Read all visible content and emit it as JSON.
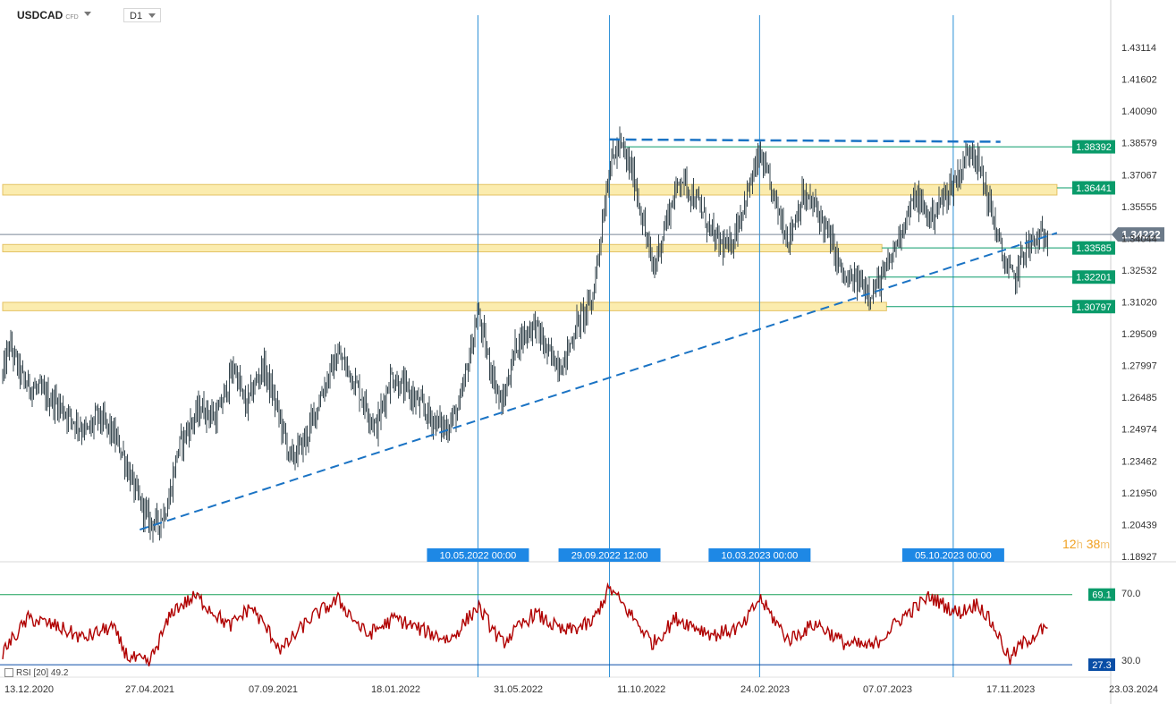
{
  "header": {
    "symbol": "USDCAD",
    "symbol_type": "CFD",
    "timeframe": "D1"
  },
  "timer": {
    "hours": "12",
    "h_unit": "h",
    "minutes": "38",
    "m_unit": "m"
  },
  "rsi_legend": {
    "label": "RSI",
    "period": "[20]",
    "value": "49.2"
  },
  "colors": {
    "candle": "#37474f",
    "trend": "#1a73c4",
    "zone": "#fbe9a0",
    "level_badge": "#0a9b6a",
    "price_badge": "#6c7a89",
    "rsi": "#b00000",
    "rsi_low": "#0a4ea6"
  },
  "chart_data": {
    "type": "candlestick",
    "instrument": "USDCAD",
    "timeframe": "D1",
    "y_axis_ticks": [
      "1.43114",
      "1.41602",
      "1.40090",
      "1.38579",
      "1.37067",
      "1.35555",
      "1.34044",
      "1.32532",
      "1.31020",
      "1.29509",
      "1.27997",
      "1.26485",
      "1.24974",
      "1.23462",
      "1.21950",
      "1.20439",
      "1.18927"
    ],
    "x_axis_ticks": [
      "13.12.2020",
      "27.04.2021",
      "07.09.2021",
      "18.01.2022",
      "31.05.2022",
      "11.10.2022",
      "24.02.2023",
      "07.07.2023",
      "17.11.2023",
      "23.03.2024"
    ],
    "current_price": "1.34222",
    "level_labels": [
      "1.38392",
      "1.36441",
      "1.33585",
      "1.32201",
      "1.30797"
    ],
    "price_path": [
      [
        "2020-12-13",
        1.275
      ],
      [
        "2020-12-20",
        1.29
      ],
      [
        "2021-01-05",
        1.272
      ],
      [
        "2021-01-20",
        1.268
      ],
      [
        "2021-02-10",
        1.262
      ],
      [
        "2021-02-25",
        1.255
      ],
      [
        "2021-03-15",
        1.248
      ],
      [
        "2021-03-25",
        1.256
      ],
      [
        "2021-04-10",
        1.248
      ],
      [
        "2021-04-20",
        1.24
      ],
      [
        "2021-05-05",
        1.22
      ],
      [
        "2021-05-20",
        1.206
      ],
      [
        "2021-05-30",
        1.205
      ],
      [
        "2021-06-10",
        1.215
      ],
      [
        "2021-06-20",
        1.24
      ],
      [
        "2021-07-01",
        1.25
      ],
      [
        "2021-07-15",
        1.26
      ],
      [
        "2021-08-01",
        1.255
      ],
      [
        "2021-08-20",
        1.28
      ],
      [
        "2021-09-01",
        1.26
      ],
      [
        "2021-09-20",
        1.28
      ],
      [
        "2021-10-05",
        1.26
      ],
      [
        "2021-10-20",
        1.235
      ],
      [
        "2021-11-05",
        1.245
      ],
      [
        "2021-11-25",
        1.27
      ],
      [
        "2021-12-10",
        1.285
      ],
      [
        "2021-12-25",
        1.275
      ],
      [
        "2022-01-10",
        1.26
      ],
      [
        "2022-01-20",
        1.25
      ],
      [
        "2022-02-05",
        1.275
      ],
      [
        "2022-03-01",
        1.265
      ],
      [
        "2022-03-20",
        1.255
      ],
      [
        "2022-04-05",
        1.25
      ],
      [
        "2022-04-20",
        1.26
      ],
      [
        "2022-05-10",
        1.305
      ],
      [
        "2022-05-20",
        1.285
      ],
      [
        "2022-06-05",
        1.26
      ],
      [
        "2022-06-20",
        1.29
      ],
      [
        "2022-07-10",
        1.3
      ],
      [
        "2022-07-25",
        1.285
      ],
      [
        "2022-08-10",
        1.28
      ],
      [
        "2022-08-25",
        1.3
      ],
      [
        "2022-09-10",
        1.31
      ],
      [
        "2022-09-29",
        1.375
      ],
      [
        "2022-10-10",
        1.385
      ],
      [
        "2022-10-25",
        1.37
      ],
      [
        "2022-11-15",
        1.325
      ],
      [
        "2022-11-30",
        1.35
      ],
      [
        "2022-12-15",
        1.37
      ],
      [
        "2023-01-05",
        1.355
      ],
      [
        "2023-01-20",
        1.34
      ],
      [
        "2023-02-05",
        1.335
      ],
      [
        "2023-02-20",
        1.355
      ],
      [
        "2023-03-10",
        1.38
      ],
      [
        "2023-03-25",
        1.36
      ],
      [
        "2023-04-10",
        1.34
      ],
      [
        "2023-04-25",
        1.36
      ],
      [
        "2023-05-10",
        1.355
      ],
      [
        "2023-05-25",
        1.34
      ],
      [
        "2023-06-10",
        1.32
      ],
      [
        "2023-06-25",
        1.32
      ],
      [
        "2023-07-10",
        1.315
      ],
      [
        "2023-07-25",
        1.325
      ],
      [
        "2023-08-10",
        1.345
      ],
      [
        "2023-08-25",
        1.36
      ],
      [
        "2023-09-10",
        1.35
      ],
      [
        "2023-09-25",
        1.36
      ],
      [
        "2023-10-10",
        1.37
      ],
      [
        "2023-10-25",
        1.385
      ],
      [
        "2023-11-05",
        1.37
      ],
      [
        "2023-11-17",
        1.35
      ],
      [
        "2023-11-28",
        1.33
      ],
      [
        "2023-12-10",
        1.32
      ],
      [
        "2023-12-20",
        1.335
      ],
      [
        "2024-01-05",
        1.34
      ],
      [
        "2024-01-15",
        1.342
      ]
    ],
    "zones": [
      {
        "label": "1.36441",
        "lower": 1.361,
        "upper": 1.366,
        "start": "2020-12-13",
        "end": "2024-01-25"
      },
      {
        "label": "1.33585",
        "lower": 1.334,
        "upper": 1.3375,
        "start": "2020-12-13",
        "end": "2023-07-20"
      },
      {
        "label": "1.30797",
        "lower": 1.306,
        "upper": 1.31,
        "start": "2020-12-13",
        "end": "2023-07-25"
      }
    ],
    "levels": [
      {
        "label": "1.38392",
        "value": 1.38392,
        "start": "2022-10-15"
      },
      {
        "label": "1.32201",
        "value": 1.32201,
        "start": "2023-07-05"
      }
    ],
    "trendlines": [
      {
        "style": "dashed",
        "from": [
          "2021-05-10",
          1.202
        ],
        "to": [
          "2024-01-25",
          1.343
        ]
      },
      {
        "style": "dashed",
        "from": [
          "2022-09-29",
          1.3874
        ],
        "to": [
          "2023-11-25",
          1.3863
        ]
      }
    ],
    "vertical_markers": [
      {
        "label": "10.05.2022 00:00",
        "date": "2022-05-10"
      },
      {
        "label": "29.09.2022 12:00",
        "date": "2022-09-29"
      },
      {
        "label": "10.03.2023 00:00",
        "date": "2023-03-10"
      },
      {
        "label": "05.10.2023 00:00",
        "date": "2023-10-05"
      }
    ],
    "rsi": {
      "period": 20,
      "value": 49.2,
      "levels": [
        {
          "label": "70.0",
          "value": 70.0
        },
        {
          "label": "30.0",
          "value": 30.0
        }
      ],
      "markers": [
        {
          "label": "69.1",
          "value": 69.1
        },
        {
          "label": "27.3",
          "value": 27.3
        }
      ],
      "path": [
        [
          "2020-12-13",
          35
        ],
        [
          "2021-01-10",
          55
        ],
        [
          "2021-02-10",
          50
        ],
        [
          "2021-03-10",
          43
        ],
        [
          "2021-04-10",
          50
        ],
        [
          "2021-04-27",
          32
        ],
        [
          "2021-05-20",
          28
        ],
        [
          "2021-06-15",
          60
        ],
        [
          "2021-07-10",
          68
        ],
        [
          "2021-08-15",
          50
        ],
        [
          "2021-09-07",
          62
        ],
        [
          "2021-10-10",
          36
        ],
        [
          "2021-11-10",
          55
        ],
        [
          "2021-12-10",
          66
        ],
        [
          "2022-01-10",
          45
        ],
        [
          "2022-02-10",
          55
        ],
        [
          "2022-03-10",
          48
        ],
        [
          "2022-04-10",
          42
        ],
        [
          "2022-05-10",
          62
        ],
        [
          "2022-06-05",
          40
        ],
        [
          "2022-07-10",
          58
        ],
        [
          "2022-08-10",
          47
        ],
        [
          "2022-09-10",
          52
        ],
        [
          "2022-09-29",
          73
        ],
        [
          "2022-10-25",
          55
        ],
        [
          "2022-11-15",
          40
        ],
        [
          "2022-12-10",
          55
        ],
        [
          "2023-01-20",
          45
        ],
        [
          "2023-02-20",
          50
        ],
        [
          "2023-03-10",
          67
        ],
        [
          "2023-04-10",
          42
        ],
        [
          "2023-05-10",
          52
        ],
        [
          "2023-06-10",
          40
        ],
        [
          "2023-07-10",
          38
        ],
        [
          "2023-08-10",
          55
        ],
        [
          "2023-09-10",
          68
        ],
        [
          "2023-10-10",
          58
        ],
        [
          "2023-11-01",
          64
        ],
        [
          "2023-11-20",
          48
        ],
        [
          "2023-12-05",
          30
        ],
        [
          "2023-12-15",
          38
        ],
        [
          "2024-01-05",
          47
        ],
        [
          "2024-01-15",
          49.2
        ]
      ]
    }
  }
}
